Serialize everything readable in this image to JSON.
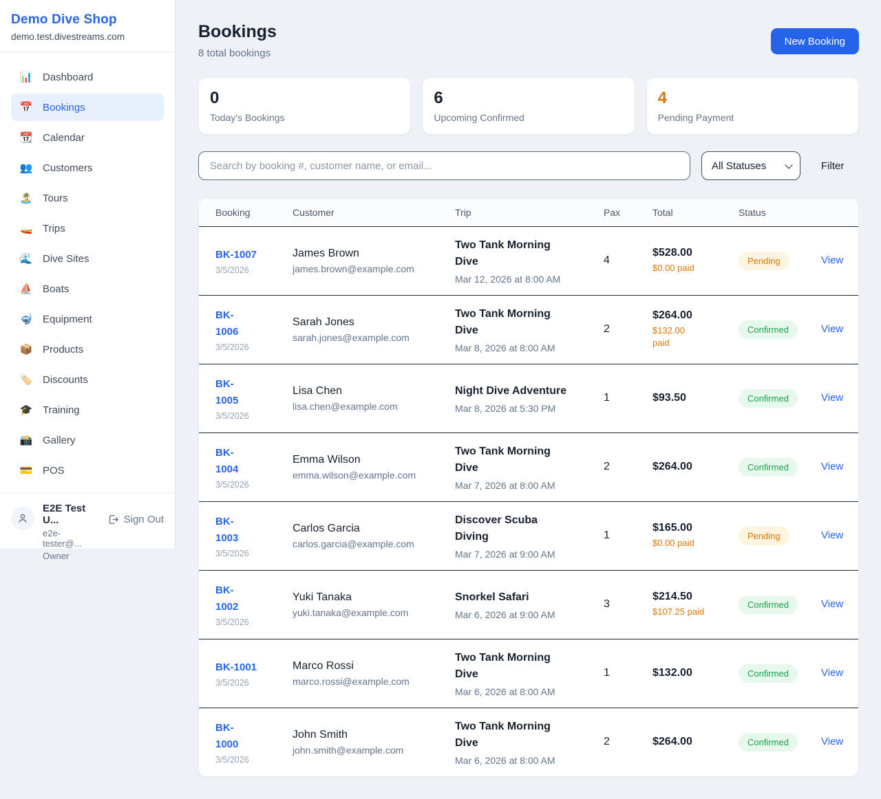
{
  "colors": {
    "accent_blue": "#2563eb",
    "pending_orange": "#d97706",
    "confirmed_green": "#16a34a",
    "page_background": "#eef1f5",
    "row_divider": "#1e2633"
  },
  "sidebar": {
    "title": "Demo Dive Shop",
    "domain": "demo.test.divestreams.com",
    "items": [
      {
        "icon": "📊",
        "icon_name": "dashboard-chart-icon",
        "label": "Dashboard",
        "active": false
      },
      {
        "icon": "📅",
        "icon_name": "bookings-calendar-icon",
        "label": "Bookings",
        "active": true
      },
      {
        "icon": "📆",
        "icon_name": "calendar-icon",
        "label": "Calendar",
        "active": false
      },
      {
        "icon": "👥",
        "icon_name": "customers-people-icon",
        "label": "Customers",
        "active": false
      },
      {
        "icon": "🏝️",
        "icon_name": "tours-island-icon",
        "label": "Tours",
        "active": false
      },
      {
        "icon": "🚤",
        "icon_name": "trips-boat-icon",
        "label": "Trips",
        "active": false
      },
      {
        "icon": "🌊",
        "icon_name": "dive-sites-wave-icon",
        "label": "Dive Sites",
        "active": false
      },
      {
        "icon": "⛵",
        "icon_name": "boats-sailboat-icon",
        "label": "Boats",
        "active": false
      },
      {
        "icon": "🤿",
        "icon_name": "equipment-mask-icon",
        "label": "Equipment",
        "active": false
      },
      {
        "icon": "📦",
        "icon_name": "products-box-icon",
        "label": "Products",
        "active": false
      },
      {
        "icon": "🏷️",
        "icon_name": "discounts-tag-icon",
        "label": "Discounts",
        "active": false
      },
      {
        "icon": "🎓",
        "icon_name": "training-cap-icon",
        "label": "Training",
        "active": false
      },
      {
        "icon": "📸",
        "icon_name": "gallery-camera-icon",
        "label": "Gallery",
        "active": false
      },
      {
        "icon": "💳",
        "icon_name": "pos-card-icon",
        "label": "POS",
        "active": false
      }
    ],
    "user": {
      "name": "E2E Test U...",
      "email": "e2e-tester@...",
      "role": "Owner",
      "sign_out": "Sign Out"
    }
  },
  "header": {
    "title": "Bookings",
    "subtitle": "8 total bookings",
    "new_booking": "New Booking"
  },
  "stats": [
    {
      "value": "0",
      "label": "Today's Bookings",
      "highlight": false
    },
    {
      "value": "6",
      "label": "Upcoming Confirmed",
      "highlight": false
    },
    {
      "value": "4",
      "label": "Pending Payment",
      "highlight": true
    }
  ],
  "filters": {
    "search_placeholder": "Search by booking #, customer name, or email...",
    "status_select": "All Statuses",
    "filter_label": "Filter"
  },
  "table": {
    "columns": [
      "Booking",
      "Customer",
      "Trip",
      "Pax",
      "Total",
      "Status",
      ""
    ],
    "rows": [
      {
        "id": "BK-1007",
        "date": "3/5/2026",
        "customer": "James Brown",
        "email": "james.brown@example.com",
        "trip": "Two Tank Morning\nDive",
        "trip_datetime": "Mar 12, 2026 at 8:00 AM",
        "pax": "4",
        "total": "$528.00",
        "paid": "$0.00 paid",
        "status": "Pending",
        "view": "View"
      },
      {
        "id": "BK-\n1006",
        "date": "3/5/2026",
        "customer": "Sarah Jones",
        "email": "sarah.jones@example.com",
        "trip": "Two Tank Morning\nDive",
        "trip_datetime": "Mar 8, 2026 at 8:00 AM",
        "pax": "2",
        "total": "$264.00",
        "paid": "$132.00\npaid",
        "status": "Confirmed",
        "view": "View"
      },
      {
        "id": "BK-\n1005",
        "date": "3/5/2026",
        "customer": "Lisa Chen",
        "email": "lisa.chen@example.com",
        "trip": "Night Dive Adventure",
        "trip_datetime": "Mar 8, 2026 at 5:30 PM",
        "pax": "1",
        "total": "$93.50",
        "paid": "",
        "status": "Confirmed",
        "view": "View"
      },
      {
        "id": "BK-\n1004",
        "date": "3/5/2026",
        "customer": "Emma Wilson",
        "email": "emma.wilson@example.com",
        "trip": "Two Tank Morning\nDive",
        "trip_datetime": "Mar 7, 2026 at 8:00 AM",
        "pax": "2",
        "total": "$264.00",
        "paid": "",
        "status": "Confirmed",
        "view": "View"
      },
      {
        "id": "BK-\n1003",
        "date": "3/5/2026",
        "customer": "Carlos Garcia",
        "email": "carlos.garcia@example.com",
        "trip": "Discover Scuba\nDiving",
        "trip_datetime": "Mar 7, 2026 at 9:00 AM",
        "pax": "1",
        "total": "$165.00",
        "paid": "$0.00 paid",
        "status": "Pending",
        "view": "View"
      },
      {
        "id": "BK-\n1002",
        "date": "3/5/2026",
        "customer": "Yuki Tanaka",
        "email": "yuki.tanaka@example.com",
        "trip": "Snorkel Safari",
        "trip_datetime": "Mar 6, 2026 at 9:00 AM",
        "pax": "3",
        "total": "$214.50",
        "paid": "$107.25 paid",
        "status": "Confirmed",
        "view": "View"
      },
      {
        "id": "BK-1001",
        "date": "3/5/2026",
        "customer": "Marco Rossi",
        "email": "marco.rossi@example.com",
        "trip": "Two Tank Morning\nDive",
        "trip_datetime": "Mar 6, 2026 at 8:00 AM",
        "pax": "1",
        "total": "$132.00",
        "paid": "",
        "status": "Confirmed",
        "view": "View"
      },
      {
        "id": "BK-\n1000",
        "date": "3/5/2026",
        "customer": "John Smith",
        "email": "john.smith@example.com",
        "trip": "Two Tank Morning\nDive",
        "trip_datetime": "Mar 6, 2026 at 8:00 AM",
        "pax": "2",
        "total": "$264.00",
        "paid": "",
        "status": "Confirmed",
        "view": "View"
      }
    ]
  }
}
